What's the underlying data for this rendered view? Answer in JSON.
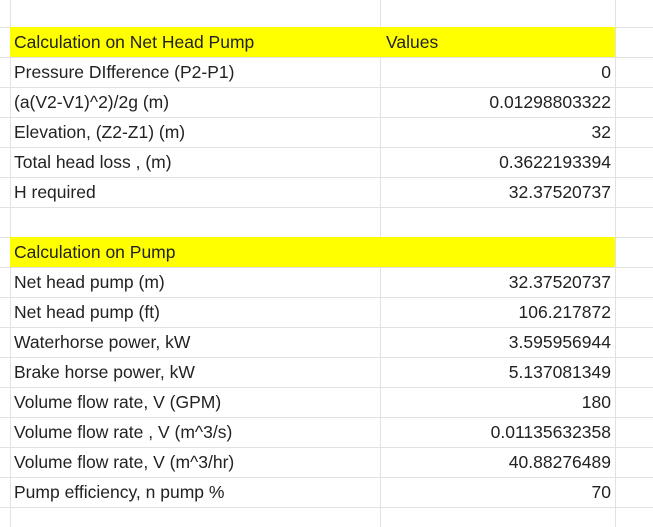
{
  "sections": [
    {
      "header": [
        "Calculation on Net Head Pump",
        "Values"
      ],
      "rows": [
        [
          "Pressure DIfference (P2-P1)",
          "0"
        ],
        [
          "(a(V2-V1)^2)/2g (m)",
          "0.01298803322"
        ],
        [
          "Elevation, (Z2-Z1) (m)",
          "32"
        ],
        [
          "Total head loss , (m)",
          "0.3622193394"
        ],
        [
          "H required",
          "32.37520737"
        ]
      ]
    },
    {
      "header": [
        "Calculation on Pump"
      ],
      "rows": [
        [
          "Net head pump (m)",
          "32.37520737"
        ],
        [
          "Net head pump (ft)",
          "106.217872"
        ],
        [
          "Waterhorse power, kW",
          "3.595956944"
        ],
        [
          "Brake horse power, kW",
          "5.137081349"
        ],
        [
          "Volume flow rate, V (GPM)",
          "180"
        ],
        [
          "Volume flow rate , V (m^3/s)",
          "0.01135632358"
        ],
        [
          "Volume flow rate, V (m^3/hr)",
          "40.88276489"
        ],
        [
          "Pump efficiency, n pump %",
          "70"
        ]
      ]
    }
  ]
}
